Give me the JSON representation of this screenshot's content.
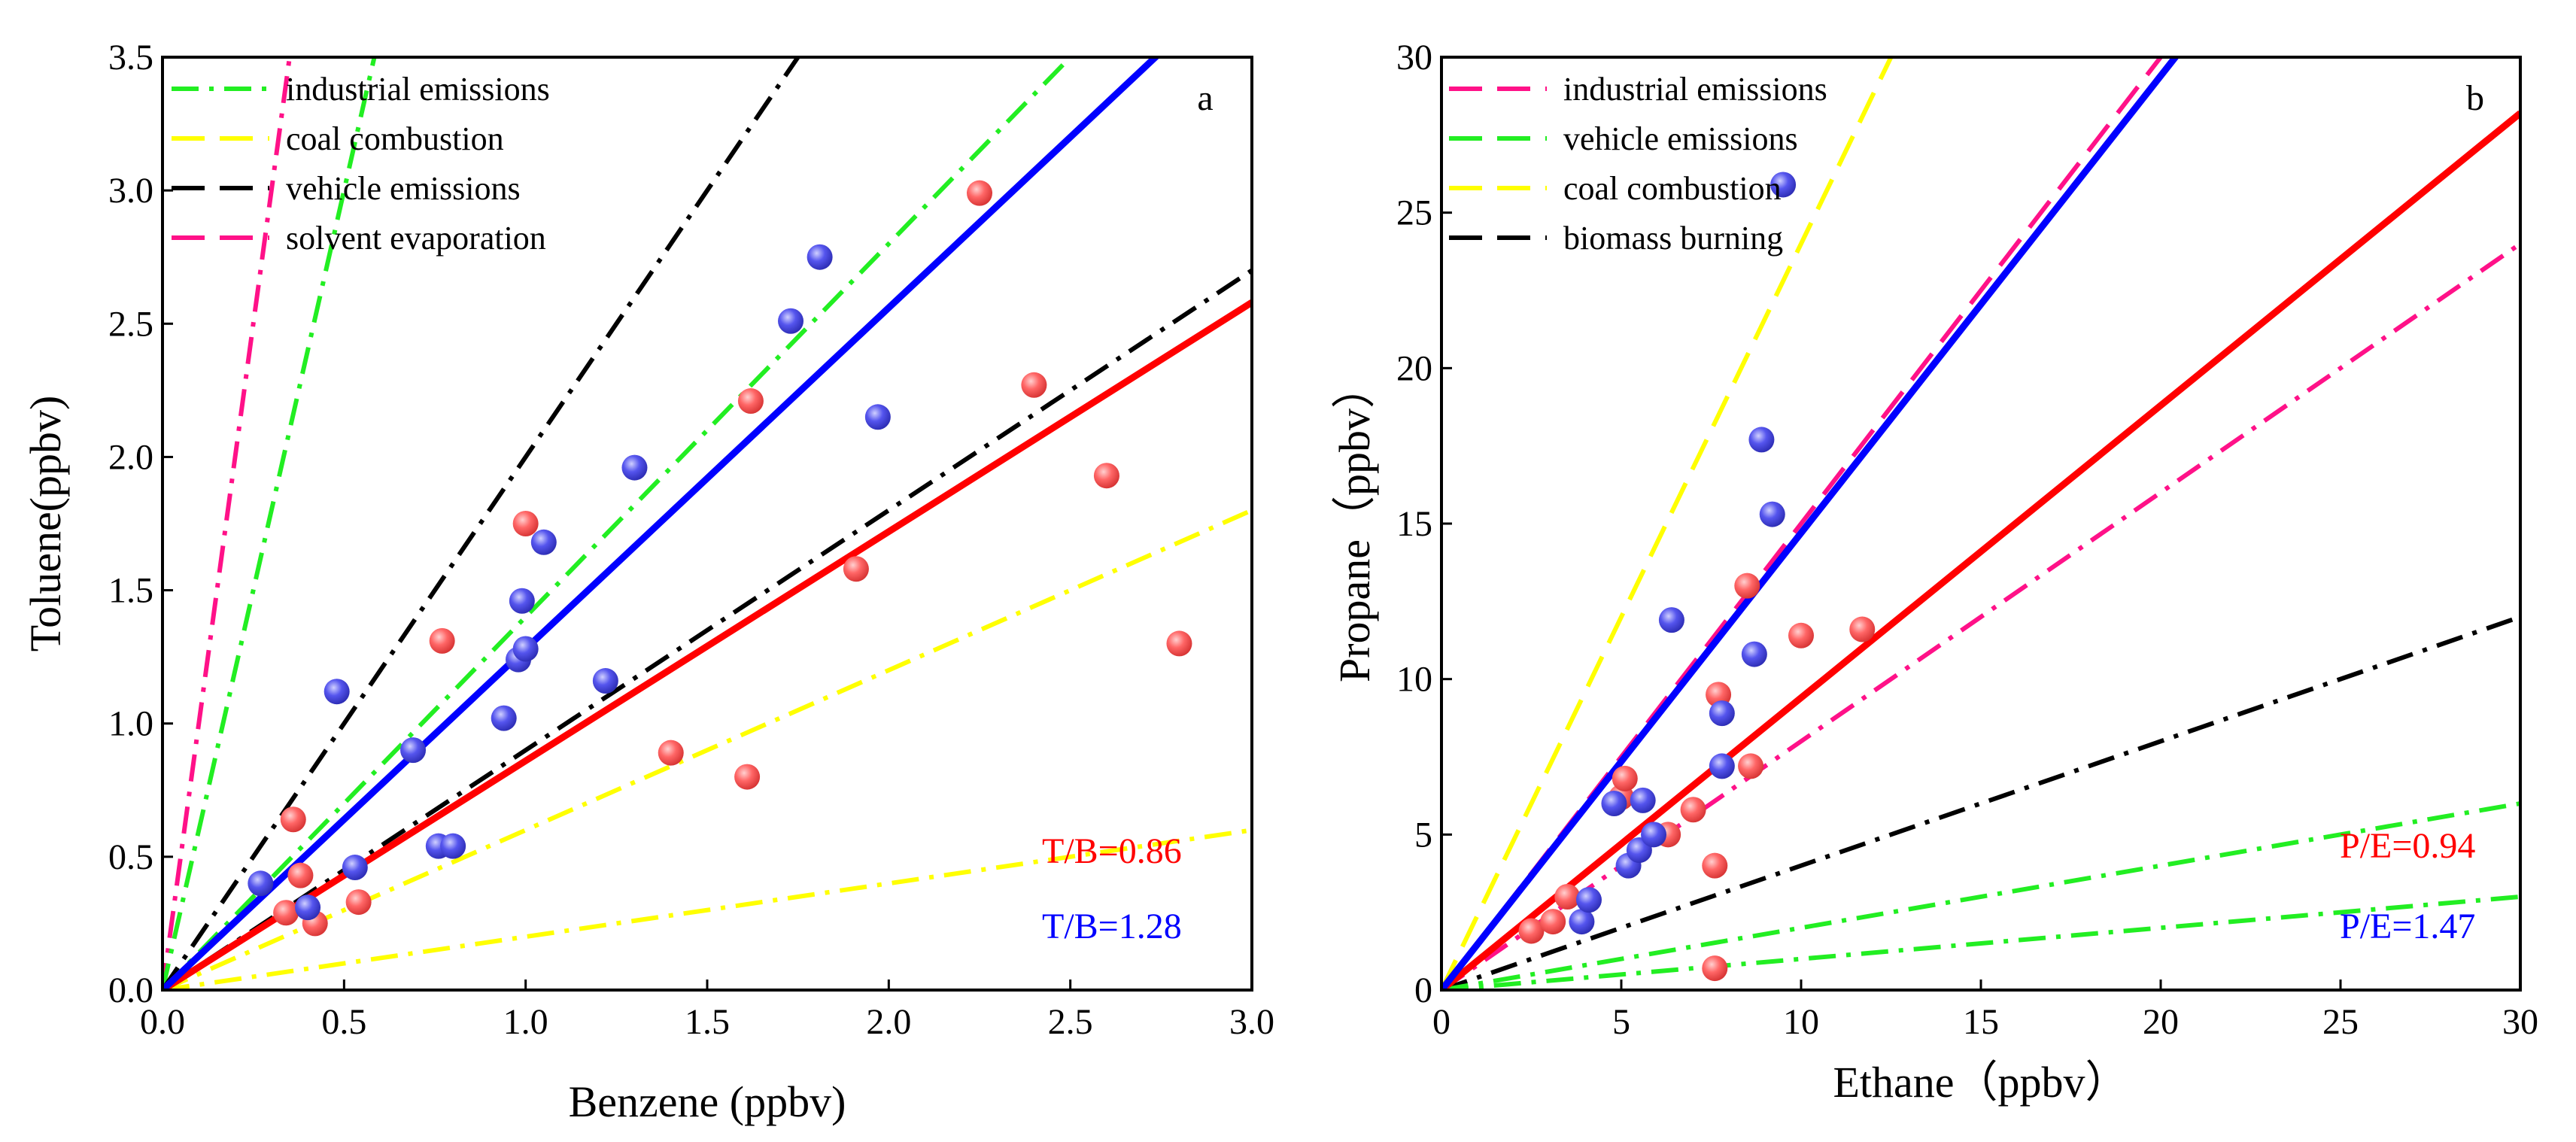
{
  "chart_data": [
    {
      "id": "a",
      "type": "scatter",
      "panel_label": "a",
      "xlabel": "Benzene (ppbv)",
      "ylabel": "Toluene(ppbv)",
      "xlim": [
        0,
        3.0
      ],
      "ylim": [
        0,
        3.5
      ],
      "xticks": [
        0,
        0.5,
        1.0,
        1.5,
        2.0,
        2.5,
        3.0
      ],
      "xtick_labels": [
        "0.0",
        "0.5",
        "1.0",
        "1.5",
        "2.0",
        "2.5",
        "3.0"
      ],
      "yticks": [
        0,
        0.5,
        1.0,
        1.5,
        2.0,
        2.5,
        3.0,
        3.5
      ],
      "ytick_labels": [
        "0.0",
        "0.5",
        "1.0",
        "1.5",
        "2.0",
        "2.5",
        "3.0",
        "3.5"
      ],
      "legend": [
        {
          "label": "industrial emissions",
          "color": "#22ee22",
          "dash": "dashdot"
        },
        {
          "label": "coal combustion",
          "color": "#ffff00",
          "dash": "dash"
        },
        {
          "label": "vehicle emissions",
          "color": "#000000",
          "dash": "dash"
        },
        {
          "label": "solvent evaporation",
          "color": "#ff1188",
          "dash": "dash"
        }
      ],
      "reference_lines": [
        {
          "name": "solvent evaporation",
          "color": "#ff1188",
          "dash": "dashdot",
          "slope": 10
        },
        {
          "name": "industrial emissions (upper)",
          "color": "#22ee22",
          "dash": "dashdot",
          "slope": 6
        },
        {
          "name": "vehicle emissions",
          "color": "#000000",
          "dash": "dashdot",
          "slope": 2.0
        },
        {
          "name": "industrial emissions (lower)",
          "color": "#22ee22",
          "dash": "dashdot",
          "slope": 1.4
        },
        {
          "name": "vehicle emissions (lower)",
          "color": "#000000",
          "dash": "dashdot",
          "slope": 0.9
        },
        {
          "name": "coal combustion (upper)",
          "color": "#ffff00",
          "dash": "dashdot",
          "slope": 0.6
        },
        {
          "name": "coal combustion (lower)",
          "color": "#ffff00",
          "dash": "dashdot",
          "slope": 0.2
        }
      ],
      "fit_lines": [
        {
          "name": "red fit",
          "color": "#ff0000",
          "slope": 0.86
        },
        {
          "name": "blue fit",
          "color": "#0000ff",
          "slope": 1.28
        }
      ],
      "series": [
        {
          "name": "red",
          "color": "#ff6666",
          "points": [
            [
              0.34,
              0.29
            ],
            [
              0.36,
              0.64
            ],
            [
              0.38,
              0.43
            ],
            [
              0.42,
              0.25
            ],
            [
              0.54,
              0.33
            ],
            [
              0.77,
              1.31
            ],
            [
              1.0,
              1.75
            ],
            [
              1.4,
              0.89
            ],
            [
              1.61,
              0.8
            ],
            [
              1.62,
              2.21
            ],
            [
              1.91,
              1.58
            ],
            [
              2.25,
              2.99
            ],
            [
              2.4,
              2.27
            ],
            [
              2.6,
              1.93
            ],
            [
              2.8,
              1.3
            ]
          ]
        },
        {
          "name": "blue",
          "color": "#5555ee",
          "points": [
            [
              0.27,
              0.4
            ],
            [
              0.4,
              0.31
            ],
            [
              0.48,
              1.12
            ],
            [
              0.53,
              0.46
            ],
            [
              0.69,
              0.9
            ],
            [
              0.76,
              0.54
            ],
            [
              0.8,
              0.54
            ],
            [
              0.94,
              1.02
            ],
            [
              0.98,
              1.24
            ],
            [
              0.99,
              1.46
            ],
            [
              1.0,
              1.28
            ],
            [
              1.05,
              1.68
            ],
            [
              1.22,
              1.16
            ],
            [
              1.3,
              1.96
            ],
            [
              1.73,
              2.51
            ],
            [
              1.81,
              2.75
            ],
            [
              1.97,
              2.15
            ]
          ]
        }
      ],
      "annotations": [
        {
          "text": "T/B=0.86",
          "color": "#ff0000"
        },
        {
          "text": "T/B=1.28",
          "color": "#0000ff"
        }
      ]
    },
    {
      "id": "b",
      "type": "scatter",
      "panel_label": "b",
      "xlabel": "Ethane（ppbv）",
      "ylabel": "Propane（ppbv）",
      "xlim": [
        0,
        30
      ],
      "ylim": [
        0,
        30
      ],
      "xticks": [
        0,
        5,
        10,
        15,
        20,
        25,
        30
      ],
      "xtick_labels": [
        "0",
        "5",
        "10",
        "15",
        "20",
        "25",
        "30"
      ],
      "yticks": [
        0,
        5,
        10,
        15,
        20,
        25,
        30
      ],
      "ytick_labels": [
        "0",
        "5",
        "10",
        "15",
        "20",
        "25",
        "30"
      ],
      "legend": [
        {
          "label": "industrial emissions",
          "color": "#ff1188",
          "dash": "dash"
        },
        {
          "label": "vehicle emissions",
          "color": "#22ee22",
          "dash": "dash"
        },
        {
          "label": "coal combustion",
          "color": "#ffff00",
          "dash": "dash"
        },
        {
          "label": "biomass burning",
          "color": "#000000",
          "dash": "dash"
        }
      ],
      "reference_lines": [
        {
          "name": "coal combustion",
          "color": "#ffff00",
          "dash": "dash",
          "slope": 2.4
        },
        {
          "name": "industrial emissions (upper)",
          "color": "#ff1188",
          "dash": "dash",
          "slope": 1.5
        },
        {
          "name": "industrial emissions (lower)",
          "color": "#ff1188",
          "dash": "dashdot",
          "slope": 0.8
        },
        {
          "name": "biomass burning",
          "color": "#000000",
          "dash": "dashdot",
          "slope": 0.4
        },
        {
          "name": "vehicle emissions (upper)",
          "color": "#22ee22",
          "dash": "dashdot",
          "slope": 0.2
        },
        {
          "name": "vehicle emissions (lower)",
          "color": "#22ee22",
          "dash": "dashdot",
          "slope": 0.1
        }
      ],
      "fit_lines": [
        {
          "name": "red fit",
          "color": "#ff0000",
          "slope": 0.94
        },
        {
          "name": "blue fit",
          "color": "#0000ff",
          "slope": 1.47
        }
      ],
      "series": [
        {
          "name": "red",
          "color": "#ff6666",
          "points": [
            [
              2.5,
              1.9
            ],
            [
              3.1,
              2.2
            ],
            [
              3.5,
              3.0
            ],
            [
              5.0,
              6.2
            ],
            [
              5.1,
              6.8
            ],
            [
              6.3,
              5.0
            ],
            [
              7.0,
              5.8
            ],
            [
              7.6,
              4.0
            ],
            [
              7.7,
              9.5
            ],
            [
              8.5,
              13.0
            ],
            [
              8.6,
              7.2
            ],
            [
              10.0,
              11.4
            ],
            [
              11.7,
              11.6
            ],
            [
              7.6,
              0.7
            ]
          ]
        },
        {
          "name": "blue",
          "color": "#5555ee",
          "points": [
            [
              3.9,
              2.2
            ],
            [
              4.1,
              2.9
            ],
            [
              4.8,
              6.0
            ],
            [
              5.2,
              4.0
            ],
            [
              5.5,
              4.5
            ],
            [
              5.6,
              6.1
            ],
            [
              5.9,
              5.0
            ],
            [
              6.4,
              11.9
            ],
            [
              7.8,
              8.9
            ],
            [
              7.8,
              7.2
            ],
            [
              8.7,
              10.8
            ],
            [
              8.9,
              17.7
            ],
            [
              9.2,
              15.3
            ],
            [
              9.5,
              25.9
            ]
          ]
        }
      ],
      "annotations": [
        {
          "text": "P/E=0.94",
          "color": "#ff0000"
        },
        {
          "text": "P/E=1.47",
          "color": "#0000ff"
        }
      ]
    }
  ]
}
